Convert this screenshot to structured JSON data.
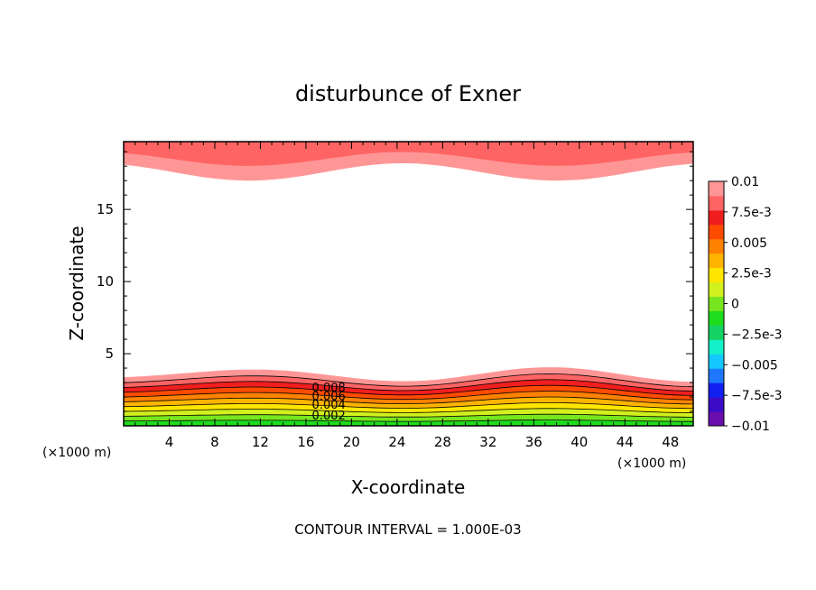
{
  "chart_data": {
    "type": "contour",
    "title": "disturbunce of Exner",
    "xlabel": "X-coordinate",
    "ylabel": "Z-coordinate",
    "x_unit": "(×1000 m)",
    "z_unit": "(×1000 m)",
    "xlim": [
      0,
      50
    ],
    "ylim": [
      0,
      19.7
    ],
    "x_ticks": [
      4,
      8,
      12,
      16,
      20,
      24,
      28,
      32,
      36,
      40,
      44,
      48
    ],
    "y_ticks": [
      5,
      10,
      15
    ],
    "colorbar": {
      "min": -0.01,
      "max": 0.01,
      "tick_labels": [
        "0.01",
        "7.5e-3",
        "0.005",
        "2.5e-3",
        "0",
        "−2.5e-3",
        "−0.005",
        "−7.5e-3",
        "−0.01"
      ],
      "colors": [
        "#6a0dad",
        "#3a0cc8",
        "#1020f0",
        "#1e78ff",
        "#14c8ff",
        "#14f0c8",
        "#14d264",
        "#1edc1e",
        "#78e61e",
        "#d2f01e",
        "#ffe600",
        "#ffb400",
        "#ff8200",
        "#ff4b00",
        "#f01e1e",
        "#ff6464",
        "#ff9696"
      ]
    },
    "contour_labels": [
      "0.008",
      "0.006",
      "0.004",
      "0.002"
    ],
    "contour_interval_text": "CONTOUR INTERVAL = 1.000E-03",
    "bottom_layer_colors": [
      "#ff9696",
      "#ff6464",
      "#f01e1e",
      "#ff4b00",
      "#ff8200",
      "#ffb400",
      "#ffe600",
      "#d2f01e",
      "#78e61e",
      "#1edc1e"
    ],
    "top_layer_colors": [
      "#ff9696",
      "#ff6464"
    ]
  }
}
